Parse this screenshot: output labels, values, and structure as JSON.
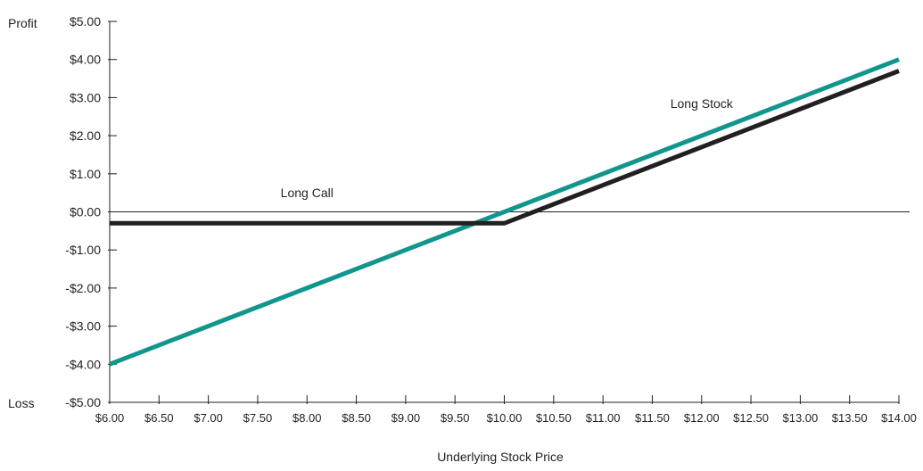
{
  "chart_data": {
    "type": "line",
    "title": "",
    "xlabel": "Underlying Stock Price",
    "ylabel": "",
    "y_top_label": "Profit",
    "y_bottom_label": "Loss",
    "xlim": [
      6.0,
      14.0
    ],
    "ylim": [
      -5.0,
      5.0
    ],
    "x_ticks": [
      6.0,
      6.5,
      7.0,
      7.5,
      8.0,
      8.5,
      9.0,
      9.5,
      10.0,
      10.5,
      11.0,
      11.5,
      12.0,
      12.5,
      13.0,
      13.5,
      14.0
    ],
    "x_tick_labels": [
      "$6.00",
      "$6.50",
      "$7.00",
      "$7.50",
      "$8.00",
      "$8.50",
      "$9.00",
      "$9.50",
      "$10.00",
      "$10.50",
      "$11.00",
      "$11.50",
      "$12.00",
      "$12.50",
      "$13.00",
      "$13.50",
      "$14.00"
    ],
    "y_ticks": [
      5,
      4,
      3,
      2,
      1,
      0,
      -1,
      -2,
      -3,
      -4,
      -5
    ],
    "y_tick_labels": [
      "$5.00",
      "$4.00",
      "$3.00",
      "$2.00",
      "$1.00",
      "$0.00",
      "-$1.00",
      "-$2.00",
      "-$3.00",
      "-$4.00",
      "-$5.00"
    ],
    "zero_line": true,
    "grid": false,
    "series": [
      {
        "name": "Long Stock",
        "color": "#11968d",
        "x": [
          6.0,
          14.0
        ],
        "y": [
          -4.0,
          4.0
        ],
        "label_at": [
          12.0,
          2.85
        ]
      },
      {
        "name": "Long Call",
        "color": "#231f20",
        "x": [
          6.0,
          10.0,
          14.0
        ],
        "y": [
          -0.3,
          -0.3,
          3.7
        ],
        "label_at": [
          8.0,
          0.5
        ]
      }
    ]
  }
}
